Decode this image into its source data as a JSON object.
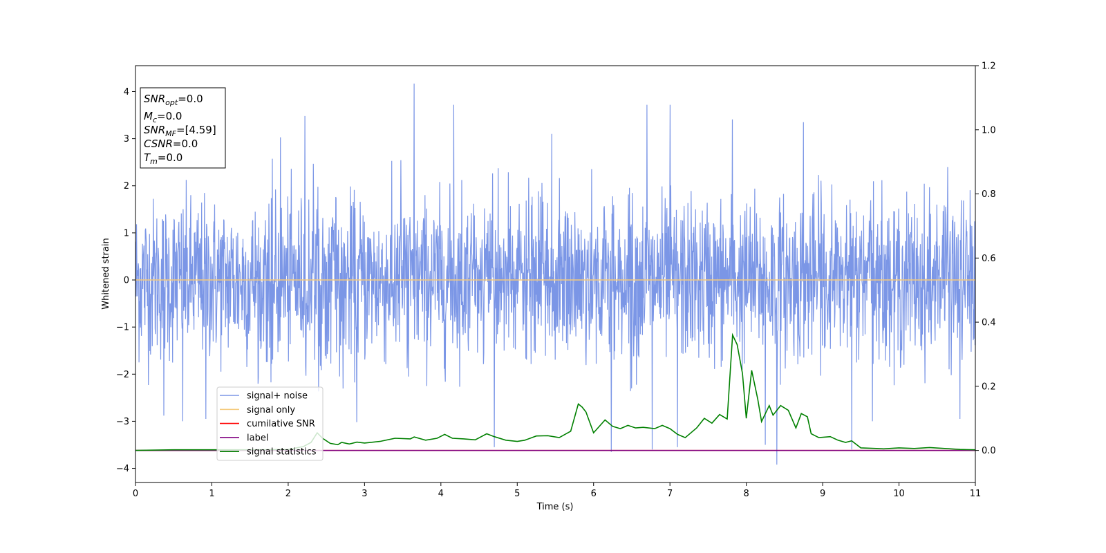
{
  "chart_data": {
    "type": "line",
    "xlabel": "Time (s)",
    "ylabel": "Whitened strain",
    "xlim": [
      0,
      11
    ],
    "ylim_left": [
      -4.3,
      4.55
    ],
    "ylim_right": [
      -0.1,
      1.2
    ],
    "x_ticks": [
      "0",
      "1",
      "2",
      "3",
      "4",
      "5",
      "6",
      "7",
      "8",
      "9",
      "10",
      "11"
    ],
    "y_ticks_left": [
      "−4",
      "−3",
      "−2",
      "−1",
      "0",
      "1",
      "2",
      "3",
      "4"
    ],
    "y_ticks_right": [
      "0.0",
      "0.2",
      "0.4",
      "0.6",
      "0.8",
      "1.0",
      "1.2"
    ],
    "grid": false,
    "legend_position": "lower-left",
    "info_box": {
      "lines": [
        {
          "base": "SNR",
          "sub": "opt",
          "value": "=0.0"
        },
        {
          "base": "M",
          "sub": "c",
          "value": "=0.0"
        },
        {
          "base": "SNR",
          "sub": "MF",
          "value": "=[4.59]"
        },
        {
          "base": "CSNR",
          "sub": "",
          "value": "=0.0"
        },
        {
          "base": "T",
          "sub": "m",
          "value": "=0.0"
        }
      ]
    },
    "series": [
      {
        "name": "signal+ noise",
        "color": "#7b96e6",
        "axis": "left",
        "kind": "noise",
        "typical_envelope": [
          -1.6,
          2.0
        ],
        "spikes": [
          {
            "x": 3.65,
            "y": 4.17
          },
          {
            "x": 4.17,
            "y": 3.72
          },
          {
            "x": 6.7,
            "y": 3.72
          },
          {
            "x": 7.0,
            "y": 3.72
          },
          {
            "x": 2.22,
            "y": 3.48
          },
          {
            "x": 7.82,
            "y": 3.41
          },
          {
            "x": 8.75,
            "y": 3.35
          },
          {
            "x": 1.9,
            "y": 3.03
          },
          {
            "x": 5.45,
            "y": 3.1
          },
          {
            "x": 8.4,
            "y": -3.92
          },
          {
            "x": 9.38,
            "y": -3.6
          },
          {
            "x": 6.23,
            "y": -3.65
          },
          {
            "x": 7.1,
            "y": -3.55
          },
          {
            "x": 8.25,
            "y": -3.5
          },
          {
            "x": 4.7,
            "y": -3.55
          },
          {
            "x": 6.77,
            "y": -3.6
          },
          {
            "x": 0.62,
            "y": -3.0
          },
          {
            "x": 0.37,
            "y": -2.88
          },
          {
            "x": 0.92,
            "y": -2.95
          },
          {
            "x": 2.9,
            "y": -3.02
          },
          {
            "x": 9.65,
            "y": -3.0
          },
          {
            "x": 10.8,
            "y": -2.95
          }
        ]
      },
      {
        "name": "signal only",
        "color": "#f5c97a",
        "axis": "left",
        "x": [
          0,
          11
        ],
        "y": [
          0,
          0
        ]
      },
      {
        "name": "cumilative SNR",
        "color": "#ff0000",
        "axis": "right",
        "x": [
          0,
          11
        ],
        "y": [
          0,
          0
        ]
      },
      {
        "name": "label",
        "color": "#800080",
        "axis": "right",
        "x": [
          0,
          11
        ],
        "y": [
          0,
          0
        ]
      },
      {
        "name": "signal statistics",
        "color": "#008000",
        "axis": "right",
        "x": [
          0.0,
          0.5,
          1.0,
          1.5,
          2.0,
          2.2,
          2.3,
          2.38,
          2.45,
          2.55,
          2.65,
          2.7,
          2.8,
          2.9,
          3.0,
          3.2,
          3.4,
          3.6,
          3.65,
          3.8,
          3.95,
          4.05,
          4.15,
          4.3,
          4.45,
          4.6,
          4.7,
          4.85,
          5.0,
          5.1,
          5.25,
          5.4,
          5.55,
          5.7,
          5.8,
          5.85,
          5.9,
          6.0,
          6.15,
          6.25,
          6.35,
          6.45,
          6.55,
          6.65,
          6.8,
          6.9,
          7.0,
          7.1,
          7.2,
          7.35,
          7.45,
          7.55,
          7.65,
          7.75,
          7.82,
          7.88,
          7.95,
          8.0,
          8.07,
          8.15,
          8.2,
          8.3,
          8.35,
          8.45,
          8.55,
          8.65,
          8.72,
          8.8,
          8.85,
          8.95,
          9.1,
          9.2,
          9.3,
          9.38,
          9.5,
          9.8,
          10.0,
          10.2,
          10.4,
          10.6,
          10.8,
          11.0
        ],
        "y": [
          0.0,
          0.002,
          0.002,
          0.002,
          0.003,
          0.012,
          0.025,
          0.055,
          0.038,
          0.022,
          0.018,
          0.025,
          0.02,
          0.026,
          0.023,
          0.028,
          0.038,
          0.036,
          0.042,
          0.032,
          0.038,
          0.05,
          0.038,
          0.036,
          0.033,
          0.052,
          0.043,
          0.032,
          0.028,
          0.032,
          0.045,
          0.046,
          0.04,
          0.06,
          0.145,
          0.135,
          0.12,
          0.055,
          0.095,
          0.075,
          0.068,
          0.078,
          0.07,
          0.072,
          0.068,
          0.078,
          0.068,
          0.05,
          0.04,
          0.07,
          0.1,
          0.085,
          0.112,
          0.098,
          0.36,
          0.33,
          0.24,
          0.1,
          0.25,
          0.16,
          0.09,
          0.14,
          0.11,
          0.14,
          0.125,
          0.07,
          0.115,
          0.105,
          0.052,
          0.04,
          0.043,
          0.032,
          0.025,
          0.03,
          0.008,
          0.005,
          0.008,
          0.006,
          0.009,
          0.006,
          0.003,
          0.002
        ]
      }
    ]
  }
}
